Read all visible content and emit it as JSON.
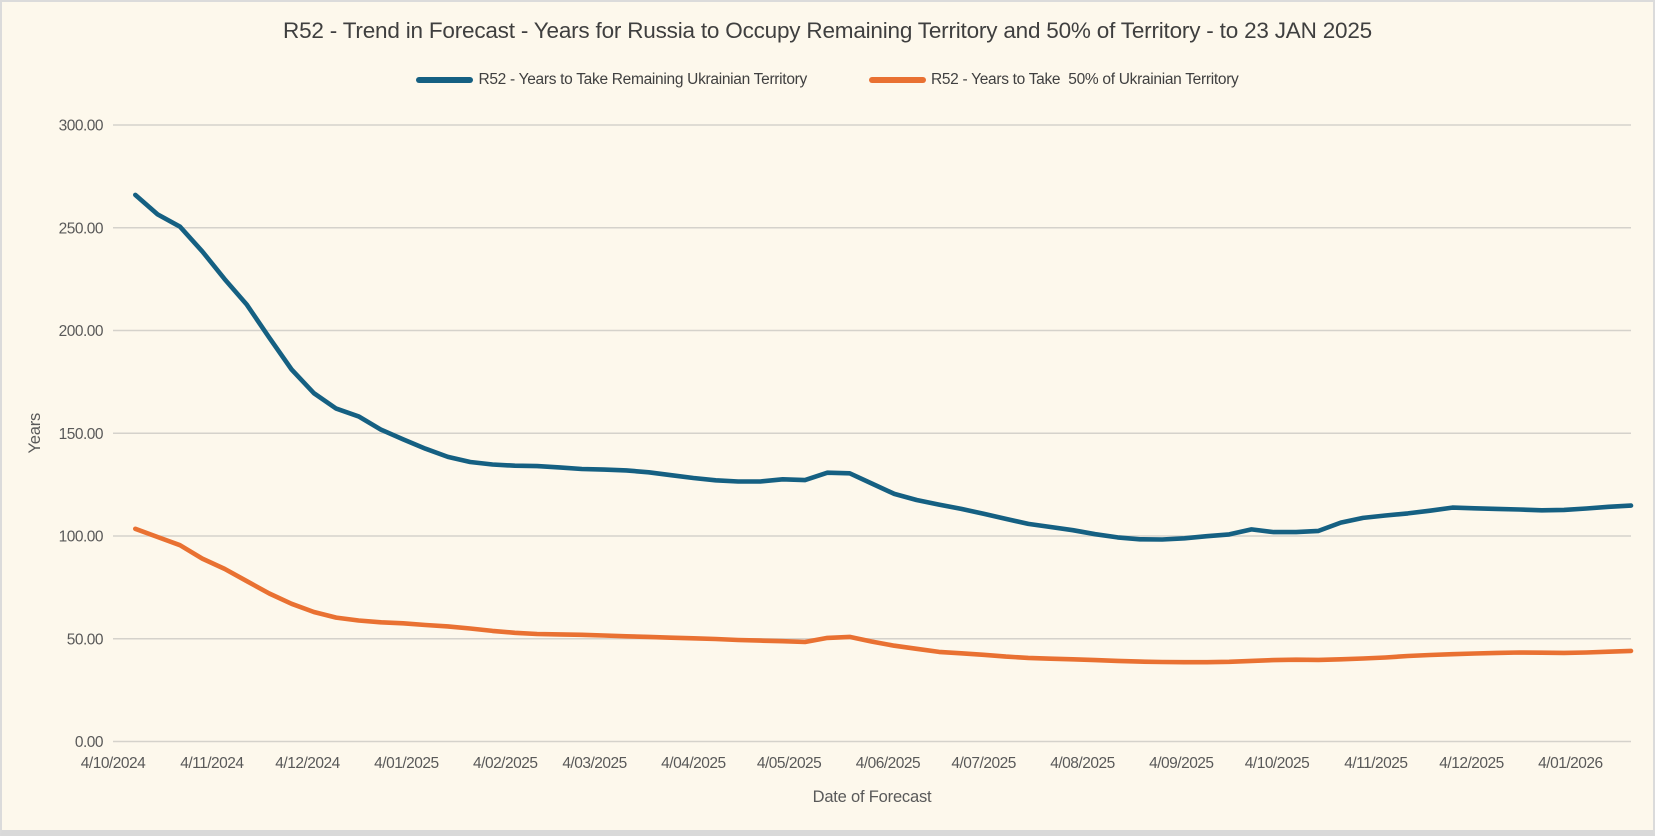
{
  "chart_data": {
    "type": "line",
    "title": "R52 - Trend in Forecast - Years for Russia to Occupy Remaining Territory and 50% of Territory - to 23 JAN 2025",
    "xlabel": "Date of Forecast",
    "ylabel": "Years",
    "ylim": [
      0,
      300
    ],
    "grid": "horizontal-only",
    "legend_position": "top",
    "background_color": "#FDF8EC",
    "gridline_color": "#D5D2CB",
    "y_tick_labels": [
      "0.00",
      "50.00",
      "100.00",
      "150.00",
      "200.00",
      "250.00",
      "300.00"
    ],
    "y_tick_values": [
      0,
      50,
      100,
      150,
      200,
      250,
      300
    ],
    "x_tick_labels": [
      "4/10/2024",
      "4/11/2024",
      "4/12/2024",
      "4/01/2025",
      "4/02/2025",
      "4/03/2025",
      "4/04/2025",
      "4/05/2025",
      "4/06/2025",
      "4/07/2025",
      "4/08/2025",
      "4/09/2025",
      "4/10/2025",
      "4/11/2025",
      "4/12/2025",
      "4/01/2026"
    ],
    "x_tick_day_offsets": [
      0,
      31,
      61,
      92,
      123,
      151,
      182,
      212,
      243,
      273,
      304,
      335,
      365,
      396,
      426,
      457
    ],
    "axis_total_days": 476,
    "first_point_day_offset": 7,
    "point_step_days": 7,
    "x_dates": [
      "10/11/2024",
      "10/18/2024",
      "10/25/2024",
      "11/1/2024",
      "11/8/2024",
      "11/15/2024",
      "11/22/2024",
      "11/29/2024",
      "12/6/2024",
      "12/13/2024",
      "12/20/2024",
      "12/27/2024",
      "1/3/2025",
      "1/10/2025",
      "1/17/2025",
      "1/24/2025",
      "1/31/2025",
      "2/7/2025",
      "2/14/2025",
      "2/21/2025",
      "2/28/2025",
      "3/7/2025",
      "3/14/2025",
      "3/21/2025",
      "3/28/2025",
      "4/4/2025",
      "4/11/2025",
      "4/18/2025",
      "4/25/2025",
      "5/2/2025",
      "5/9/2025",
      "5/16/2025",
      "5/23/2025",
      "5/30/2025",
      "6/6/2025",
      "6/13/2025",
      "6/20/2025",
      "6/27/2025",
      "7/4/2025",
      "7/11/2025",
      "7/18/2025",
      "7/25/2025",
      "8/1/2025",
      "8/8/2025",
      "8/15/2025",
      "8/22/2025",
      "8/29/2025",
      "9/5/2025",
      "9/12/2025",
      "9/19/2025",
      "9/26/2025",
      "10/3/2025",
      "10/10/2025",
      "10/17/2025",
      "10/24/2025",
      "10/31/2025",
      "11/7/2025",
      "11/14/2025",
      "11/21/2025",
      "11/28/2025",
      "12/5/2025",
      "12/12/2025",
      "12/19/2025",
      "12/26/2025",
      "1/2/2026",
      "1/9/2026",
      "1/16/2026",
      "1/23/2026"
    ],
    "series": [
      {
        "name": "R52 - Years to Take Remaining Ukrainian Territory",
        "color": "#156082",
        "values": [
          266,
          256.5,
          250.5,
          238.5,
          225,
          212.5,
          196.5,
          181,
          169.5,
          162,
          158.2,
          151.8,
          147,
          142.5,
          138.5,
          136,
          134.8,
          134.2,
          134,
          133.4,
          132.6,
          132.3,
          131.9,
          131,
          129.6,
          128.2,
          127.1,
          126.5,
          126.5,
          127.6,
          127.2,
          130.8,
          130.5,
          125.5,
          120.5,
          117.5,
          115.3,
          113.2,
          110.8,
          108.3,
          105.9,
          104.4,
          102.8,
          100.9,
          99.3,
          98.4,
          98.3,
          98.9,
          99.9,
          100.8,
          103.2,
          101.9,
          101.9,
          102.5,
          106.5,
          108.8,
          110,
          111,
          112.3,
          113.8,
          113.5,
          113.2,
          112.9,
          112.5,
          112.7,
          113.4,
          114.2,
          114.8
        ]
      },
      {
        "name": "R52 - Years to Take  50% of Ukrainian Territory",
        "color": "#E97132",
        "values": [
          103.5,
          99.5,
          95.5,
          89,
          84,
          78,
          72,
          67,
          63,
          60.3,
          58.9,
          58,
          57.5,
          56.7,
          56,
          55,
          53.8,
          52.9,
          52.3,
          52.1,
          51.9,
          51.6,
          51.2,
          50.9,
          50.5,
          50.2,
          49.9,
          49.4,
          49.1,
          48.8,
          48.4,
          50.4,
          50.9,
          48.6,
          46.6,
          45.1,
          43.6,
          42.9,
          42.2,
          41.3,
          40.7,
          40.3,
          40,
          39.6,
          39.2,
          38.9,
          38.7,
          38.6,
          38.6,
          38.8,
          39.2,
          39.6,
          39.8,
          39.7,
          40,
          40.4,
          40.9,
          41.6,
          42.1,
          42.5,
          42.8,
          43.1,
          43.3,
          43.2,
          43.1,
          43.3,
          43.7,
          44.1
        ]
      }
    ]
  }
}
